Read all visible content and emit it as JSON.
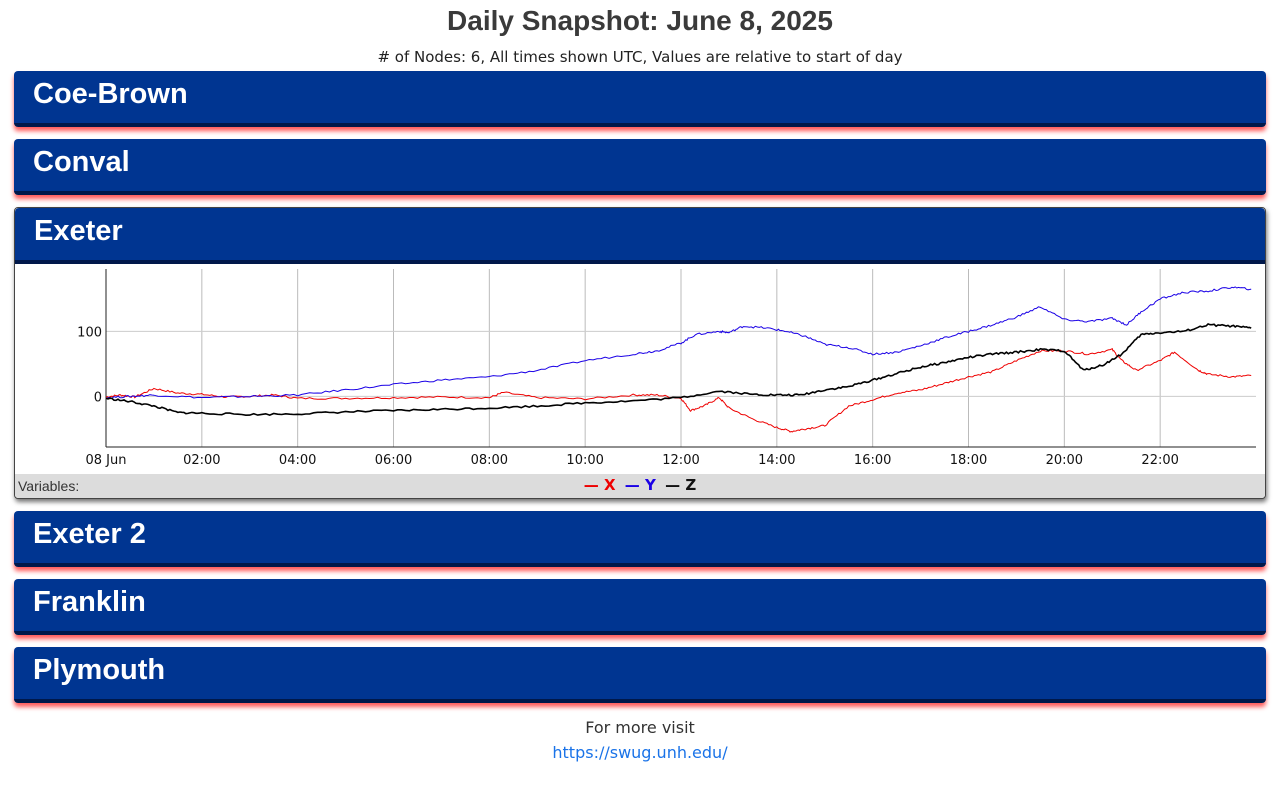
{
  "header": {
    "title": "Daily Snapshot: June 8, 2025",
    "subtitle": "# of Nodes: 6, All times shown UTC, Values are relative to start of day"
  },
  "panels": [
    {
      "name": "Coe-Brown",
      "expanded": false
    },
    {
      "name": "Conval",
      "expanded": false
    },
    {
      "name": "Exeter",
      "expanded": true
    },
    {
      "name": "Exeter 2",
      "expanded": false
    },
    {
      "name": "Franklin",
      "expanded": false
    },
    {
      "name": "Plymouth",
      "expanded": false
    }
  ],
  "legend": {
    "label": "Variables:",
    "items": [
      {
        "label": "X",
        "color": "#ee0000"
      },
      {
        "label": "Y",
        "color": "#1a00e6"
      },
      {
        "label": "Z",
        "color": "#000000"
      }
    ]
  },
  "chart_data": {
    "type": "line",
    "xlabel": "",
    "ylabel": "",
    "x_ticks": [
      "08 Jun",
      "02:00",
      "04:00",
      "06:00",
      "08:00",
      "10:00",
      "12:00",
      "14:00",
      "16:00",
      "18:00",
      "20:00",
      "22:00"
    ],
    "y_ticks": [
      0,
      100
    ],
    "xlim": [
      0,
      24
    ],
    "ylim": [
      -78,
      196
    ],
    "grid": true,
    "series": [
      {
        "name": "X",
        "color": "#ee0000",
        "x": [
          0,
          0.3,
          0.6,
          1.0,
          1.5,
          2.0,
          2.5,
          3.0,
          3.5,
          4.0,
          5.0,
          6.0,
          7.0,
          8.0,
          8.3,
          9.0,
          10.0,
          11.0,
          11.5,
          12.0,
          12.2,
          12.5,
          12.8,
          13.0,
          13.5,
          14.0,
          14.3,
          14.6,
          15.0,
          15.5,
          16.0,
          16.5,
          17.0,
          17.5,
          18.0,
          18.5,
          19.0,
          19.5,
          20.0,
          20.5,
          21.0,
          21.2,
          21.5,
          22.0,
          22.3,
          22.8,
          23.0,
          23.5,
          23.9
        ],
        "y": [
          -1,
          2,
          -1,
          12,
          5,
          3,
          -1,
          0,
          2,
          -3,
          -3,
          -2,
          -1,
          -2,
          6,
          -2,
          -4,
          2,
          2,
          -3,
          -22,
          -14,
          -2,
          -18,
          -35,
          -48,
          -54,
          -50,
          -45,
          -15,
          -5,
          5,
          10,
          20,
          30,
          38,
          55,
          70,
          70,
          65,
          72,
          55,
          40,
          55,
          68,
          40,
          34,
          30,
          32
        ]
      },
      {
        "name": "Y",
        "color": "#1a00e6",
        "x": [
          0,
          0.5,
          1.0,
          2.0,
          3.0,
          4.0,
          5.0,
          6.0,
          7.0,
          8.0,
          9.0,
          10.0,
          11.0,
          11.5,
          12.0,
          12.3,
          12.8,
          13.0,
          13.3,
          13.8,
          14.2,
          14.6,
          15.0,
          15.5,
          16.0,
          16.5,
          17.0,
          17.5,
          18.0,
          18.5,
          19.0,
          19.5,
          20.0,
          20.5,
          21.0,
          21.3,
          21.6,
          22.0,
          22.5,
          23.0,
          23.5,
          23.9
        ],
        "y": [
          -2,
          0,
          2,
          -2,
          0,
          2,
          10,
          18,
          25,
          30,
          40,
          55,
          65,
          70,
          82,
          95,
          100,
          98,
          108,
          105,
          100,
          92,
          80,
          75,
          65,
          68,
          78,
          90,
          100,
          110,
          122,
          138,
          118,
          115,
          120,
          110,
          130,
          150,
          160,
          162,
          168,
          165
        ]
      },
      {
        "name": "Z",
        "color": "#000000",
        "x": [
          0,
          0.5,
          1.0,
          1.5,
          2.0,
          3.0,
          4.0,
          5.0,
          6.0,
          7.0,
          8.0,
          9.0,
          10.0,
          11.0,
          12.0,
          12.8,
          13.5,
          14.0,
          14.5,
          15.0,
          15.5,
          16.0,
          16.5,
          17.0,
          17.5,
          18.0,
          18.5,
          19.0,
          19.5,
          20.0,
          20.4,
          20.8,
          21.2,
          21.6,
          22.0,
          22.5,
          23.0,
          23.5,
          23.9
        ],
        "y": [
          -3,
          -8,
          -15,
          -25,
          -26,
          -28,
          -27,
          -24,
          -22,
          -20,
          -18,
          -15,
          -10,
          -7,
          -2,
          8,
          3,
          2,
          2,
          10,
          15,
          25,
          35,
          45,
          52,
          60,
          65,
          68,
          72,
          70,
          40,
          48,
          65,
          95,
          98,
          100,
          110,
          108,
          105
        ]
      }
    ]
  },
  "footer": {
    "text": "For more visit",
    "link": "https://swug.unh.edu/"
  }
}
